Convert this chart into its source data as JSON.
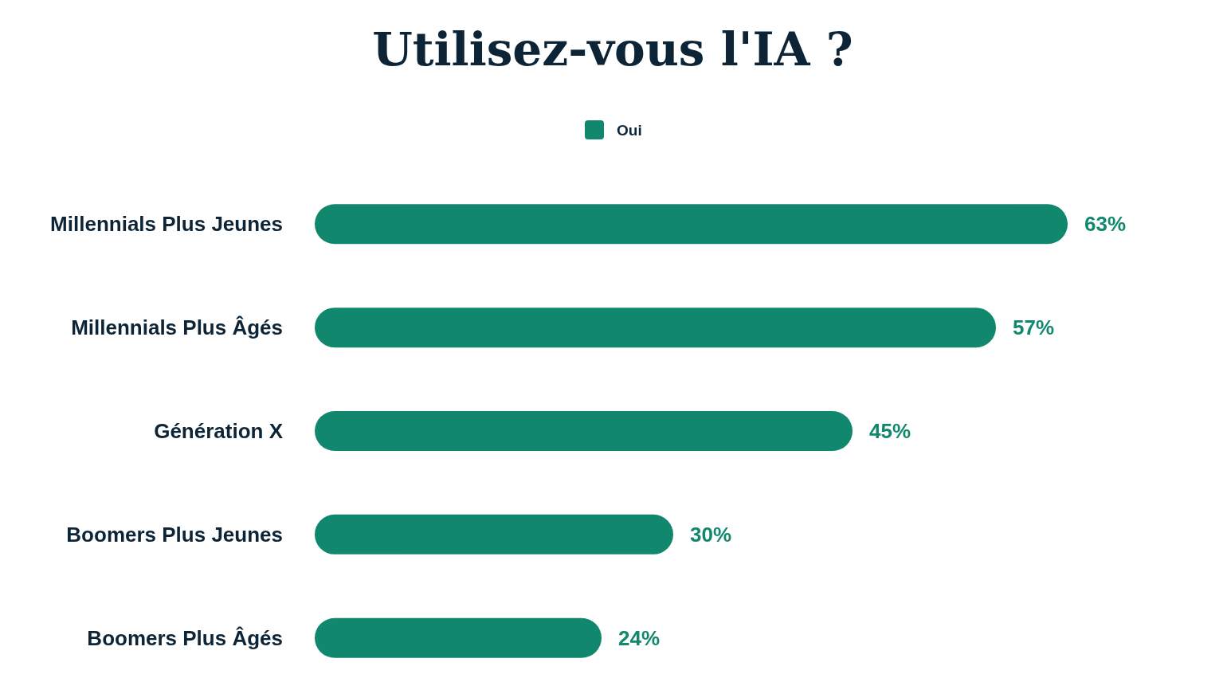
{
  "chart_data": {
    "type": "bar",
    "orientation": "horizontal",
    "title": "Utilisez-vous l'IA ?",
    "categories": [
      "Millennials Plus Jeunes",
      "Millennials Plus Âgés",
      "Génération X",
      "Boomers Plus Jeunes",
      "Boomers Plus Âgés"
    ],
    "series": [
      {
        "name": "Oui",
        "color": "#11876d",
        "values": [
          63,
          57,
          45,
          30,
          24
        ],
        "value_labels": [
          "63%",
          "57%",
          "45%",
          "30%",
          "24%"
        ]
      }
    ],
    "legend": "top"
  }
}
